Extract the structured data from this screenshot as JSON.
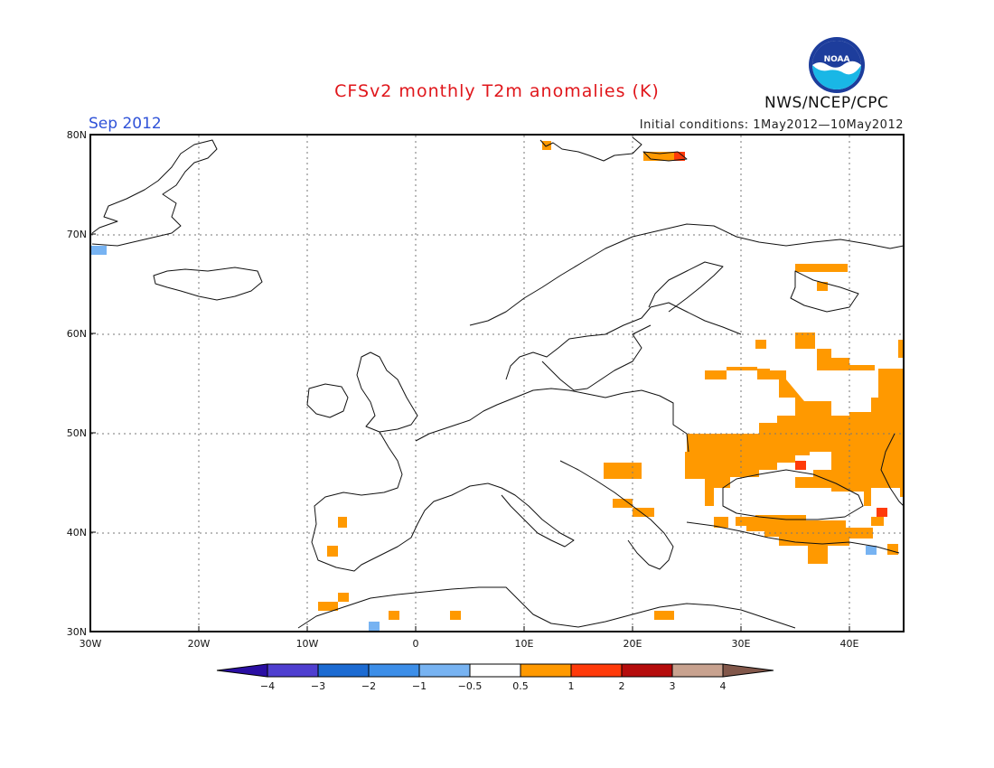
{
  "header": {
    "title": "CFSv2 monthly T2m anomalies (K)",
    "month": "Sep 2012",
    "initial_conditions": "Initial conditions: 1May2012—10May2012",
    "organization": "NWS/NCEP/CPC",
    "logo_text": "NOAA"
  },
  "map": {
    "projection": "lat-lon",
    "lon_range": [
      -30,
      45
    ],
    "lat_range": [
      30,
      80
    ],
    "grid": "dotted",
    "lat_ticks": [
      "30N",
      "40N",
      "50N",
      "60N",
      "70N",
      "80N"
    ],
    "lon_ticks": [
      "30W",
      "20W",
      "10W",
      "0",
      "10E",
      "20E",
      "30E",
      "40E"
    ]
  },
  "colorbar": {
    "labels": [
      "−4",
      "−3",
      "−2",
      "−1",
      "−0.5",
      "0.5",
      "1",
      "2",
      "3",
      "4"
    ],
    "colors": [
      "#2a0ea3",
      "#4f3fd0",
      "#1c6bd2",
      "#3c8ee8",
      "#77b3f2",
      "#ffffff",
      "#ff9900",
      "#ff3a0a",
      "#b50c0c",
      "#c8a28f",
      "#82574a"
    ]
  },
  "colors": {
    "anomaly_warm_1": "#ff9900",
    "anomaly_warm_2": "#ff3a0a",
    "anomaly_cool_1": "#77b3f2",
    "title": "#e0161b",
    "month": "#2f52d8"
  }
}
